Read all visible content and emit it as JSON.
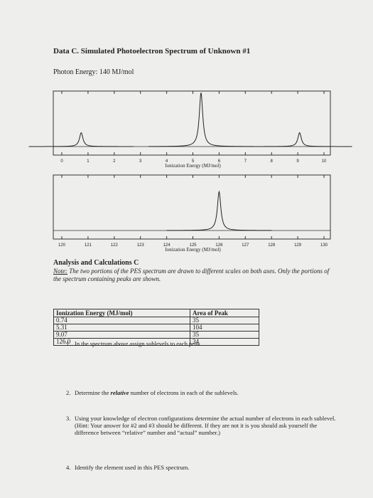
{
  "header": {
    "title": "Data C. Simulated Photoelectron Spectrum of Unknown #1",
    "photon_energy": "Photon Energy: 140 MJ/mol"
  },
  "charts": [
    {
      "type": "spectrum",
      "xlabel": "Ionization Energy (MJ/mol)",
      "xlim": [
        0,
        10
      ],
      "xticks": [
        0,
        1,
        2,
        3,
        4,
        5,
        6,
        7,
        8,
        9,
        10
      ],
      "ylim": [
        0,
        1
      ],
      "peaks": {
        "x": [
          0.74,
          5.31,
          9.07
        ],
        "heights": [
          0.25,
          0.97,
          0.25
        ]
      }
    },
    {
      "type": "spectrum",
      "xlabel": "Ionization Energy (MJ/mol)",
      "xlim": [
        120,
        130
      ],
      "xticks": [
        120,
        121,
        122,
        123,
        124,
        125,
        126,
        127,
        128,
        129,
        130
      ],
      "ylim": [
        0,
        1
      ],
      "peaks": {
        "x": [
          126.0
        ],
        "heights": [
          0.7
        ]
      }
    }
  ],
  "analysis": {
    "heading": "Analysis and Calculations C",
    "note_label": "Note:",
    "note": "The two portions of the PES spectrum are drawn to different scales on both axes. Only the portions of the spectrum containing peaks are shown."
  },
  "table": {
    "header": [
      "Ionization Energy (MJ/mol)",
      "Area of Peak"
    ],
    "rows": [
      [
        "0.74",
        "35"
      ],
      [
        "5.31",
        "104"
      ],
      [
        "9.07",
        "35"
      ],
      [
        "126.0",
        "34"
      ]
    ]
  },
  "questions": [
    {
      "number": "1.",
      "text": "In the spectrum above assign sublevels to each peak."
    },
    {
      "number": "2.",
      "text_before": "Determine the",
      "emphasis": "relative",
      "text_after": "number of electrons in each of the sublevels."
    },
    {
      "number": "3.",
      "text": "Using your knowledge of electron configurations determine the actual number of electrons in each sublevel. (Hint: Your answer for #2 and #3 should be different. If they are not it is you should ask yourself the difference between “relative” number and “actual” number.)"
    },
    {
      "number": "4.",
      "text": "Identify the element used in this PES spectrum."
    }
  ]
}
